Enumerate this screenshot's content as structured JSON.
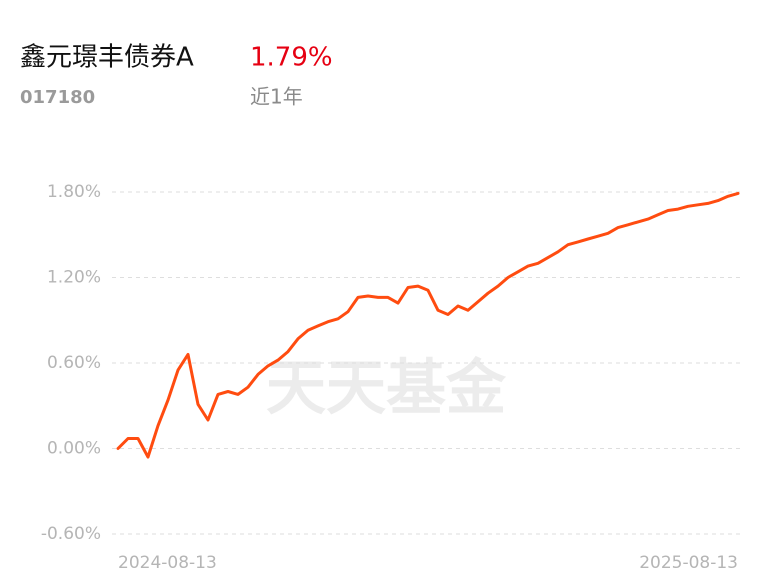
{
  "header": {
    "title": "鑫元璟丰债券A",
    "return": "1.79%",
    "code": "017180",
    "period": "近1年",
    "watermark": "天天基金"
  },
  "chart_data": {
    "type": "line",
    "categories": [
      "2024-08-13",
      null,
      null,
      null,
      null,
      null,
      null,
      null,
      null,
      null,
      null,
      null,
      null,
      null,
      null,
      null,
      null,
      null,
      null,
      null,
      null,
      null,
      null,
      null,
      null,
      null,
      null,
      null,
      null,
      null,
      null,
      null,
      null,
      null,
      null,
      null,
      null,
      null,
      null,
      null,
      null,
      null,
      null,
      null,
      null,
      null,
      null,
      null,
      null,
      null,
      null,
      null,
      null,
      null,
      null,
      null,
      null,
      null,
      null,
      null,
      null,
      null,
      "2025-08-13"
    ],
    "series": [
      {
        "color": "#ff4c10",
        "values": [
          0.0,
          0.07,
          0.07,
          -0.06,
          0.16,
          0.34,
          0.55,
          0.66,
          0.31,
          0.2,
          0.38,
          0.4,
          0.38,
          0.43,
          0.52,
          0.58,
          0.62,
          0.68,
          0.77,
          0.83,
          0.86,
          0.89,
          0.91,
          0.96,
          1.06,
          1.07,
          1.06,
          1.06,
          1.02,
          1.13,
          1.14,
          1.11,
          0.97,
          0.94,
          1.0,
          0.97,
          1.03,
          1.09,
          1.14,
          1.2,
          1.24,
          1.28,
          1.3,
          1.34,
          1.38,
          1.43,
          1.45,
          1.47,
          1.49,
          1.51,
          1.55,
          1.57,
          1.59,
          1.61,
          1.64,
          1.67,
          1.68,
          1.7,
          1.71,
          1.72,
          1.74,
          1.77,
          1.79
        ]
      }
    ],
    "ylim": [
      -0.6,
      1.8
    ],
    "yticks": [
      {
        "value": -0.6,
        "label": "-0.60%"
      },
      {
        "value": 0,
        "label": "0.00%"
      },
      {
        "value": 0.6,
        "label": "0.60%"
      },
      {
        "value": 1.2,
        "label": "1.20%"
      },
      {
        "value": 1.8,
        "label": "1.80%"
      }
    ],
    "grid": true
  }
}
